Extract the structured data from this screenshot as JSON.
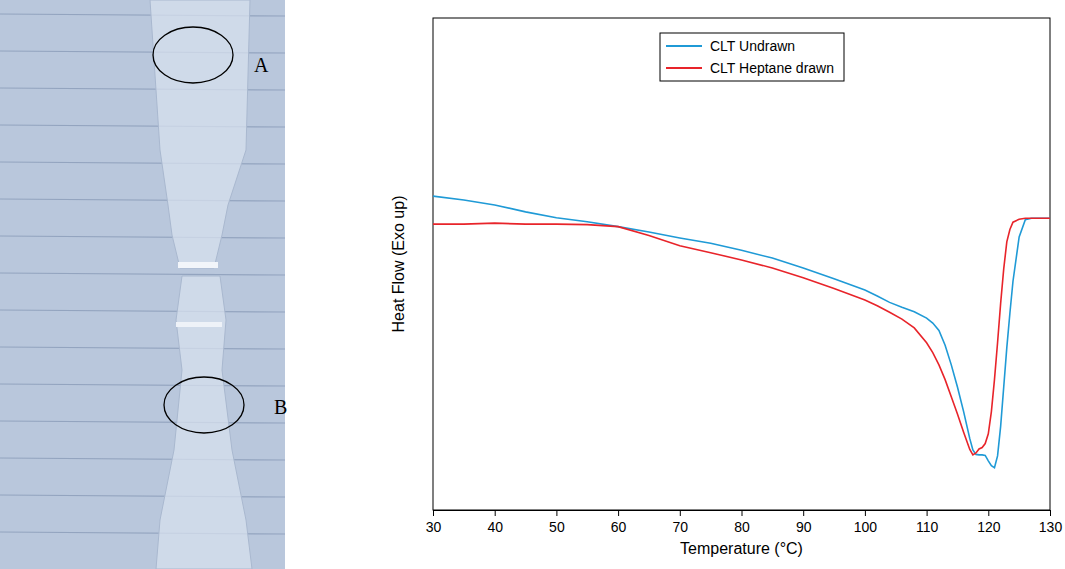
{
  "photo": {
    "labels": [
      "A",
      "B"
    ]
  },
  "chart_data": {
    "type": "line",
    "x_label": "Temperature (°C)",
    "y_label": "Heat Flow (Exo up)",
    "x": [
      30,
      35,
      40,
      45,
      50,
      55,
      60,
      65,
      70,
      75,
      80,
      85,
      90,
      95,
      100,
      102,
      104,
      106,
      108,
      110,
      111,
      112,
      113,
      114,
      115,
      116,
      117,
      117.5,
      118,
      118.5,
      119,
      119.5,
      120,
      120.5,
      121,
      121.5,
      122,
      122.5,
      123,
      123.5,
      124,
      125,
      126,
      127,
      128,
      129,
      130
    ],
    "series": [
      {
        "name": "CLT Undrawn",
        "color": "#1f9ad6",
        "values": [
          63.8,
          63.0,
          62.0,
          60.6,
          59.4,
          58.6,
          57.6,
          56.5,
          55.3,
          54.2,
          52.8,
          51.2,
          49.2,
          47.0,
          44.7,
          43.5,
          42.2,
          41.2,
          40.3,
          39.0,
          38.0,
          36.5,
          33.5,
          29.5,
          25.0,
          20.0,
          14.5,
          12.2,
          11.3,
          11.2,
          11.2,
          11.1,
          10.0,
          9.0,
          8.6,
          11.0,
          17.0,
          25.0,
          33.0,
          40.0,
          46.5,
          55.5,
          59.0,
          59.3,
          59.3,
          59.3,
          59.3
        ]
      },
      {
        "name": "CLT Heptane drawn",
        "color": "#e8242a",
        "values": [
          58.1,
          58.1,
          58.3,
          58.1,
          58.1,
          58.0,
          57.6,
          55.8,
          53.7,
          52.3,
          50.8,
          49.2,
          47.2,
          45.0,
          42.7,
          41.5,
          40.2,
          38.8,
          37.0,
          34.0,
          32.0,
          29.5,
          26.5,
          23.0,
          19.5,
          15.8,
          12.3,
          11.2,
          11.6,
          12.4,
          12.7,
          13.5,
          15.5,
          20.0,
          26.5,
          34.0,
          42.0,
          49.0,
          54.5,
          57.0,
          58.5,
          59.1,
          59.3,
          59.3,
          59.3,
          59.3,
          59.3
        ]
      }
    ],
    "xlim": [
      30,
      130
    ],
    "xticks": [
      30,
      40,
      50,
      60,
      70,
      80,
      90,
      100,
      110,
      120,
      130
    ],
    "ylim": [
      0,
      100
    ],
    "tick_labels": "x",
    "legend": "upper center"
  }
}
